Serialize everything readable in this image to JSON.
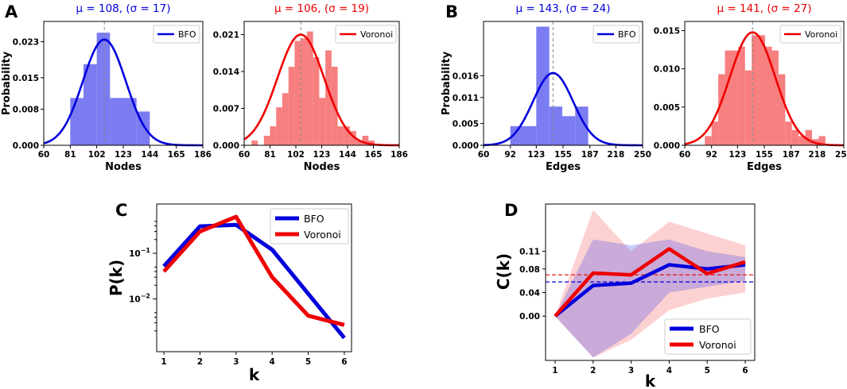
{
  "panels": {
    "A": "A",
    "B": "B",
    "C": "C",
    "D": "D"
  },
  "colors": {
    "bfo": "#0000dd",
    "voronoi": "#ee0000",
    "bfo_hist": "#7b7bf2",
    "voronoi_hist": "#f77f7f"
  },
  "chart_data": [
    {
      "id": "A1",
      "type": "bar",
      "panel": "A",
      "title": "μ = 108,  (σ = 17)",
      "xlabel": "Nodes",
      "ylabel": "Probability",
      "legend": "BFO",
      "legend_position": "top-right",
      "xticks": [
        "60",
        "81",
        "102",
        "123",
        "144",
        "165",
        "186"
      ],
      "yticks": [
        "0.000",
        "0.008",
        "0.015",
        "0.023"
      ],
      "xlim": [
        60,
        186
      ],
      "ylim": [
        0,
        0.0275
      ],
      "bin_edges": [
        81,
        91.5,
        102,
        112.5,
        123,
        133.5,
        144
      ],
      "values": [
        0.0105,
        0.018,
        0.025,
        0.0105,
        0.0105,
        0.0075
      ],
      "gauss": {
        "mu": 108,
        "sigma": 17
      },
      "mean_line": 108
    },
    {
      "id": "A2",
      "type": "bar",
      "panel": "A",
      "title": "μ = 106,  (σ = 19)",
      "xlabel": "Nodes",
      "ylabel": "",
      "legend": "Voronoi",
      "legend_position": "top-right",
      "xticks": [
        "60",
        "81",
        "102",
        "123",
        "144",
        "165",
        "186"
      ],
      "yticks": [
        "0.000",
        "0.007",
        "0.014",
        "0.021"
      ],
      "xlim": [
        60,
        186
      ],
      "ylim": [
        0,
        0.0235
      ],
      "bin_edges": [
        66,
        71,
        76,
        81,
        86,
        91,
        96,
        101,
        106,
        111,
        116,
        121,
        126,
        131,
        136,
        141,
        146,
        151,
        156,
        161,
        166
      ],
      "values": [
        0.0009,
        0.0,
        0.0018,
        0.0036,
        0.0072,
        0.0099,
        0.0149,
        0.0198,
        0.0203,
        0.0216,
        0.0167,
        0.009,
        0.018,
        0.0149,
        0.0036,
        0.0036,
        0.0027,
        0.0009,
        0.0018,
        0.0009
      ],
      "gauss": {
        "mu": 106,
        "sigma": 19
      },
      "mean_line": 106
    },
    {
      "id": "B1",
      "type": "bar",
      "panel": "B",
      "title": "μ = 143,  (σ = 24)",
      "xlabel": "Edges",
      "ylabel": "Probability",
      "legend": "BFO",
      "legend_position": "top-right",
      "xticks": [
        "60",
        "92",
        "123",
        "155",
        "187",
        "218",
        "250"
      ],
      "yticks": [
        "0.000",
        "0.005",
        "0.011",
        "0.016"
      ],
      "xlim": [
        60,
        250
      ],
      "ylim": [
        0,
        0.0285
      ],
      "bin_edges": [
        92,
        107.5,
        123,
        138.5,
        154,
        169.5,
        185
      ],
      "values": [
        0.0044,
        0.0044,
        0.0273,
        0.0089,
        0.0067,
        0.0089
      ],
      "gauss": {
        "mu": 143,
        "sigma": 24
      },
      "mean_line": 143
    },
    {
      "id": "B2",
      "type": "bar",
      "panel": "B",
      "title": "μ = 141,  (σ = 27)",
      "xlabel": "Edges",
      "ylabel": "",
      "legend": "Voronoi",
      "legend_position": "top-right",
      "xticks": [
        "60",
        "92",
        "123",
        "155",
        "187",
        "218",
        "250"
      ],
      "yticks": [
        "0.000",
        "0.005",
        "0.010",
        "0.015"
      ],
      "xlim": [
        60,
        250
      ],
      "ylim": [
        0,
        0.0162
      ],
      "bin_edges": [
        84,
        92,
        100,
        108,
        116,
        124,
        132,
        140,
        148,
        156,
        164,
        172,
        180,
        188,
        196,
        204,
        212,
        220,
        228
      ],
      "values": [
        0.0012,
        0.0031,
        0.0093,
        0.0124,
        0.0124,
        0.0129,
        0.0098,
        0.0144,
        0.0144,
        0.0129,
        0.0124,
        0.0093,
        0.0031,
        0.002,
        0.0012,
        0.002,
        0.0008,
        0.0012
      ],
      "gauss": {
        "mu": 141,
        "sigma": 27
      },
      "mean_line": 141
    },
    {
      "id": "C",
      "type": "line",
      "panel": "C",
      "xlabel": "k",
      "ylabel": "P(k)",
      "yscale": "log",
      "x": [
        1,
        2,
        3,
        4,
        5,
        6
      ],
      "xticks": [
        "1",
        "2",
        "3",
        "4",
        "5",
        "6"
      ],
      "ylim": [
        0.0007,
        1.2
      ],
      "series": [
        {
          "name": "BFO",
          "values": [
            0.052,
            0.39,
            0.42,
            0.12,
            0.013,
            0.0014
          ]
        },
        {
          "name": "Voronoi",
          "values": [
            0.04,
            0.3,
            0.63,
            0.03,
            0.0043,
            0.0027
          ]
        }
      ],
      "legend_position": "top-right"
    },
    {
      "id": "D",
      "type": "line",
      "panel": "D",
      "xlabel": "k",
      "ylabel": "C(k)",
      "x": [
        1,
        2,
        3,
        4,
        5,
        6
      ],
      "xticks": [
        "1",
        "2",
        "3",
        "4",
        "5",
        "6"
      ],
      "yticks": [
        "0.00",
        "0.04",
        "0.08",
        "0.11"
      ],
      "ylim": [
        -0.075,
        0.19
      ],
      "series": [
        {
          "name": "BFO",
          "values": [
            0.0,
            0.052,
            0.056,
            0.087,
            0.08,
            0.087
          ],
          "lower": [
            0.0,
            -0.07,
            -0.03,
            0.04,
            0.05,
            0.06
          ],
          "upper": [
            0.0,
            0.13,
            0.12,
            0.13,
            0.11,
            0.1
          ],
          "hline": 0.058
        },
        {
          "name": "Voronoi",
          "values": [
            0.0,
            0.073,
            0.07,
            0.114,
            0.072,
            0.092
          ],
          "lower": [
            0.0,
            -0.07,
            -0.04,
            0.01,
            0.03,
            0.04
          ],
          "upper": [
            0.0,
            0.18,
            0.11,
            0.16,
            0.14,
            0.12
          ],
          "hline": 0.07
        }
      ],
      "legend_position": "bottom-right"
    }
  ]
}
